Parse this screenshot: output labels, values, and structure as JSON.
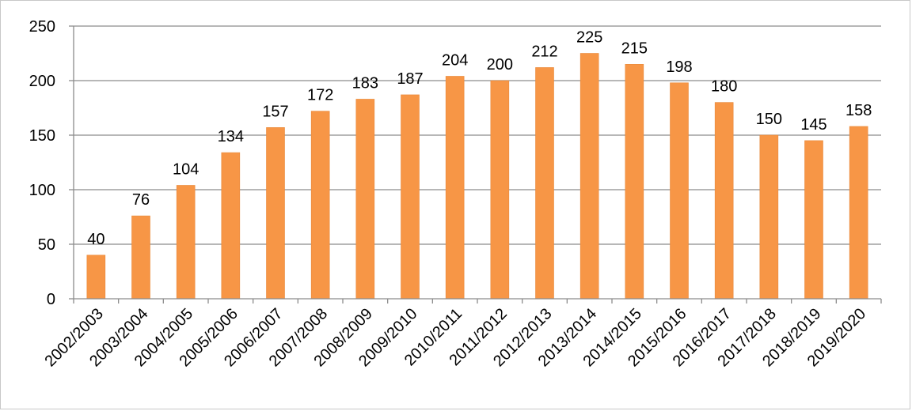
{
  "chart_data": {
    "type": "bar",
    "title": "",
    "xlabel": "",
    "ylabel": "",
    "categories": [
      "2002/2003",
      "2003/2004",
      "2004/2005",
      "2005/2006",
      "2006/2007",
      "2007/2008",
      "2008/2009",
      "2009/2010",
      "2010/2011",
      "2011/2012",
      "2012/2013",
      "2013/2014",
      "2014/2015",
      "2015/2016",
      "2016/2017",
      "2017/2018",
      "2018/2019",
      "2019/2020"
    ],
    "values": [
      40,
      76,
      104,
      134,
      157,
      172,
      183,
      187,
      204,
      200,
      212,
      225,
      215,
      198,
      180,
      150,
      145,
      158
    ],
    "ylim": [
      0,
      250
    ],
    "yticks": [
      0,
      50,
      100,
      150,
      200,
      250
    ],
    "grid": true,
    "data_labels": true,
    "bar_color": "#F79646"
  }
}
